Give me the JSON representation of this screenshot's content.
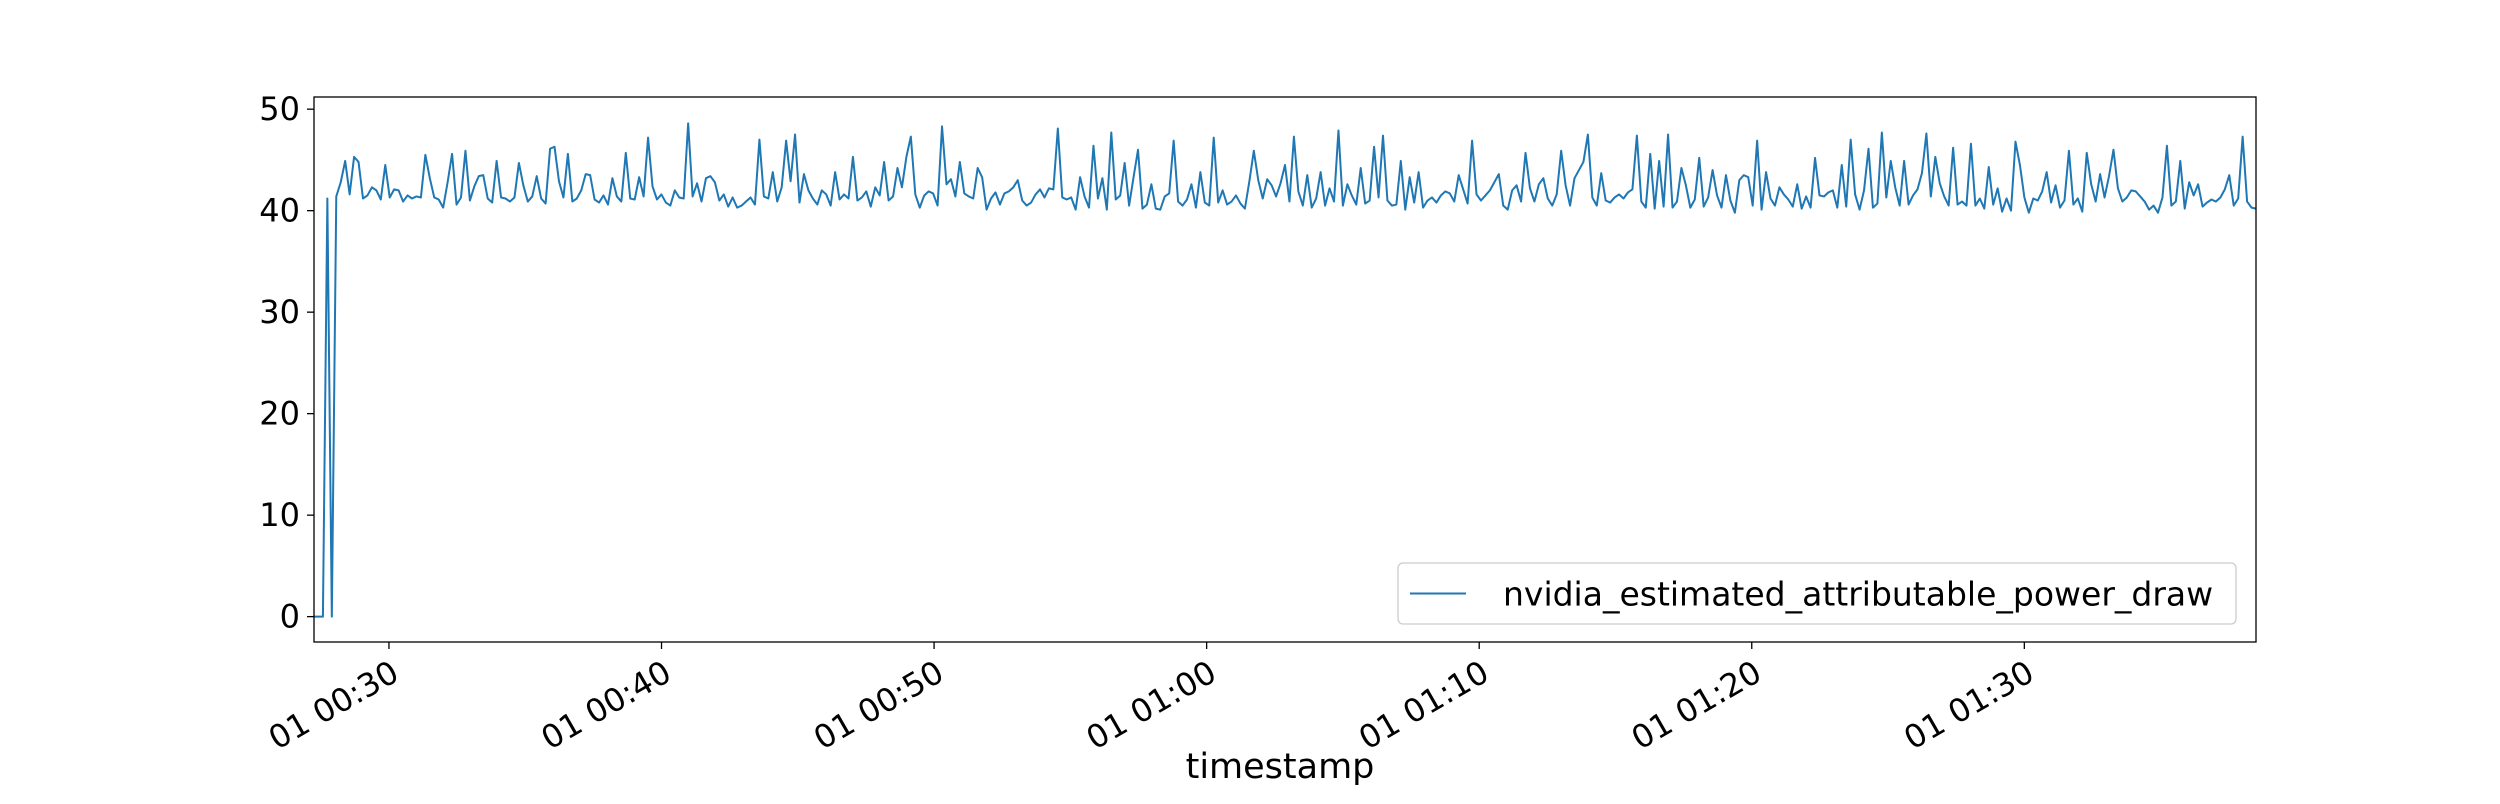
{
  "chart_data": {
    "type": "line",
    "title": "",
    "xlabel": "timestamp",
    "ylabel": "",
    "x_start": "00:27:15",
    "x_end": "01:38:30",
    "xlim": [
      "00:27:15",
      "01:38:30"
    ],
    "ylim": [
      -2.5,
      51.2
    ],
    "y_ticks": [
      0,
      10,
      20,
      30,
      40,
      50
    ],
    "x_ticks": [
      {
        "value": "00:30",
        "label": "01 00:30"
      },
      {
        "value": "00:40",
        "label": "01 00:40"
      },
      {
        "value": "00:50",
        "label": "01 00:50"
      },
      {
        "value": "01:00",
        "label": "01 01:00"
      },
      {
        "value": "01:10",
        "label": "01 01:10"
      },
      {
        "value": "01:20",
        "label": "01 01:20"
      },
      {
        "value": "01:30",
        "label": "01 01:30"
      }
    ],
    "grid": false,
    "legend_position": "lower-right",
    "series": [
      {
        "name": "nvidia_estimated_attributable_power_draw",
        "color": "#1f77b4",
        "values": [
          0.0,
          0.0,
          0.0,
          41.2,
          0.0,
          41.4,
          42.8,
          44.9,
          41.6,
          45.3,
          44.8,
          41.2,
          41.5,
          42.3,
          42.0,
          41.1,
          44.5,
          41.3,
          42.1,
          42.0,
          40.9,
          41.5,
          41.2,
          41.4,
          41.3,
          45.5,
          43.2,
          41.3,
          41.1,
          40.3,
          42.8,
          45.6,
          40.6,
          41.3,
          45.9,
          41.0,
          42.4,
          43.4,
          43.5,
          41.2,
          40.8,
          44.9,
          41.3,
          41.2,
          40.9,
          41.3,
          44.7,
          42.5,
          40.9,
          41.4,
          43.4,
          41.2,
          40.7,
          46.1,
          46.3,
          42.9,
          41.3,
          45.6,
          40.9,
          41.2,
          42.0,
          43.6,
          43.5,
          41.1,
          40.8,
          41.5,
          40.6,
          43.2,
          41.4,
          40.9,
          45.7,
          41.2,
          41.1,
          43.3,
          41.4,
          47.2,
          42.4,
          41.1,
          41.6,
          40.8,
          40.5,
          42.0,
          41.3,
          41.2,
          48.6,
          41.4,
          42.7,
          40.9,
          43.2,
          43.4,
          42.8,
          41.0,
          41.6,
          40.4,
          41.3,
          40.3,
          40.5,
          40.9,
          41.3,
          40.6,
          47.0,
          41.4,
          41.2,
          43.8,
          40.9,
          42.3,
          46.9,
          42.9,
          47.5,
          40.8,
          43.6,
          42.0,
          41.2,
          40.6,
          42.0,
          41.6,
          40.5,
          43.8,
          41.1,
          41.6,
          41.2,
          45.3,
          41.0,
          41.3,
          41.9,
          40.4,
          42.3,
          41.5,
          44.8,
          41.0,
          41.4,
          44.2,
          42.3,
          45.3,
          47.3,
          41.6,
          40.3,
          41.5,
          41.9,
          41.7,
          40.5,
          48.3,
          42.6,
          43.1,
          41.4,
          44.8,
          41.7,
          41.4,
          41.2,
          44.2,
          43.3,
          40.1,
          41.2,
          41.8,
          40.6,
          41.7,
          41.9,
          42.3,
          43.0,
          41.0,
          40.5,
          40.8,
          41.6,
          42.1,
          41.3,
          42.2,
          42.1,
          48.1,
          41.3,
          41.1,
          41.3,
          40.1,
          43.3,
          41.4,
          40.3,
          46.4,
          41.2,
          43.2,
          40.1,
          47.7,
          41.1,
          41.5,
          44.7,
          40.5,
          43.3,
          46.0,
          40.2,
          40.6,
          42.6,
          40.2,
          40.1,
          41.4,
          41.7,
          46.9,
          40.9,
          40.5,
          41.1,
          42.6,
          40.3,
          43.8,
          40.8,
          40.5,
          47.2,
          40.8,
          42.0,
          40.6,
          40.9,
          41.5,
          40.7,
          40.2,
          42.9,
          45.9,
          43.0,
          41.2,
          43.1,
          42.5,
          41.4,
          42.7,
          44.5,
          40.9,
          47.3,
          41.9,
          40.5,
          43.5,
          40.3,
          41.2,
          43.8,
          40.5,
          42.2,
          40.9,
          47.9,
          40.5,
          42.6,
          41.5,
          40.6,
          44.2,
          40.7,
          41.0,
          46.3,
          41.3,
          47.4,
          41.0,
          40.5,
          40.6,
          44.9,
          40.1,
          43.3,
          40.8,
          43.8,
          40.3,
          41.0,
          41.3,
          40.8,
          41.5,
          41.9,
          41.7,
          40.9,
          43.5,
          42.1,
          40.7,
          46.9,
          41.6,
          41.0,
          41.5,
          42.0,
          42.8,
          43.6,
          40.5,
          40.1,
          42.0,
          42.5,
          40.9,
          45.7,
          42.2,
          40.9,
          42.6,
          43.2,
          41.2,
          40.5,
          41.6,
          45.9,
          42.5,
          40.5,
          43.2,
          44.0,
          44.8,
          47.5,
          41.3,
          40.5,
          43.7,
          41.0,
          40.8,
          41.3,
          41.6,
          41.2,
          41.8,
          42.1,
          47.4,
          40.9,
          40.3,
          45.6,
          40.2,
          44.9,
          40.4,
          47.5,
          40.3,
          40.9,
          44.2,
          42.5,
          40.3,
          41.1,
          45.2,
          40.4,
          41.3,
          44.0,
          41.5,
          40.3,
          43.5,
          41.0,
          39.8,
          43.0,
          43.5,
          43.3,
          40.5,
          46.9,
          40.1,
          43.8,
          41.2,
          40.5,
          42.3,
          41.6,
          41.1,
          40.4,
          42.6,
          40.2,
          41.4,
          40.3,
          45.2,
          41.5,
          41.4,
          41.8,
          42.0,
          40.3,
          44.5,
          40.4,
          47.0,
          41.6,
          40.1,
          42.0,
          46.1,
          40.3,
          40.7,
          47.7,
          41.3,
          44.9,
          42.3,
          40.5,
          44.9,
          40.6,
          41.5,
          42.1,
          43.7,
          47.6,
          41.4,
          45.3,
          42.7,
          41.4,
          40.5,
          46.2,
          40.6,
          40.9,
          40.5,
          46.6,
          40.5,
          41.2,
          40.2,
          44.3,
          40.6,
          42.2,
          39.9,
          41.2,
          40.0,
          46.8,
          44.5,
          41.3,
          39.8,
          41.2,
          41.0,
          41.9,
          43.8,
          40.8,
          42.5,
          40.3,
          41.0,
          45.9,
          40.6,
          41.2,
          39.9,
          45.7,
          42.6,
          40.9,
          43.6,
          41.3,
          43.4,
          46.0,
          42.2,
          40.9,
          41.3,
          42.0,
          41.9,
          41.4,
          40.9,
          40.1,
          40.5,
          39.8,
          41.3,
          46.4,
          40.5,
          40.9,
          44.9,
          40.2,
          42.8,
          41.5,
          42.6,
          40.4,
          40.8,
          41.1,
          40.9,
          41.3,
          42.1,
          43.5,
          40.5,
          41.2,
          47.3,
          40.9,
          40.3,
          40.2
        ]
      }
    ]
  }
}
